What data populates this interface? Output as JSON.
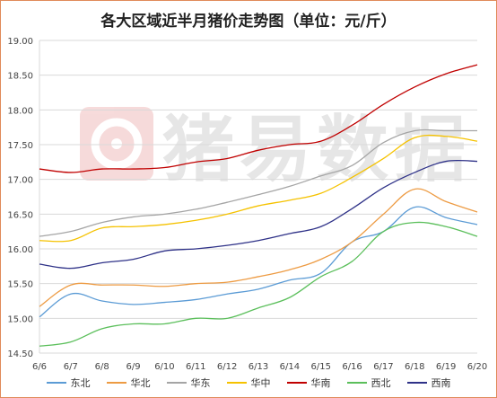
{
  "chart_data": {
    "type": "line",
    "title": "各大区域近半月猪价走势图（单位：元/斤）",
    "categories": [
      "6/6",
      "6/7",
      "6/8",
      "6/9",
      "6/10",
      "6/11",
      "6/12",
      "6/13",
      "6/14",
      "6/15",
      "6/16",
      "6/17",
      "6/18",
      "6/19",
      "6/20"
    ],
    "ylim": [
      14.5,
      19.0
    ],
    "yticks": [
      "19.00",
      "18.50",
      "18.00",
      "17.50",
      "17.00",
      "16.50",
      "16.00",
      "15.50",
      "15.00",
      "14.50"
    ],
    "grid": true,
    "legend_position": "bottom",
    "watermark": "猪易数据",
    "series": [
      {
        "name": "东北",
        "color": "#5b9bd5",
        "values": [
          15.02,
          15.35,
          15.25,
          15.2,
          15.23,
          15.27,
          15.35,
          15.42,
          15.55,
          15.65,
          16.1,
          16.25,
          16.6,
          16.45,
          16.35
        ]
      },
      {
        "name": "华北",
        "color": "#ed9b43",
        "values": [
          15.17,
          15.48,
          15.48,
          15.48,
          15.46,
          15.5,
          15.52,
          15.6,
          15.7,
          15.85,
          16.1,
          16.5,
          16.86,
          16.68,
          16.53
        ]
      },
      {
        "name": "华东",
        "color": "#a5a5a5",
        "values": [
          16.18,
          16.25,
          16.38,
          16.46,
          16.5,
          16.57,
          16.67,
          16.78,
          16.9,
          17.05,
          17.2,
          17.53,
          17.7,
          17.7,
          17.7
        ]
      },
      {
        "name": "华中",
        "color": "#f5c200",
        "values": [
          16.12,
          16.12,
          16.3,
          16.32,
          16.35,
          16.41,
          16.5,
          16.62,
          16.7,
          16.8,
          17.03,
          17.3,
          17.6,
          17.62,
          17.55
        ]
      },
      {
        "name": "华南",
        "color": "#c00000",
        "values": [
          17.15,
          17.1,
          17.15,
          17.15,
          17.17,
          17.25,
          17.3,
          17.42,
          17.5,
          17.55,
          17.78,
          18.08,
          18.33,
          18.52,
          18.65
        ]
      },
      {
        "name": "西北",
        "color": "#5bbf5b",
        "values": [
          14.6,
          14.66,
          14.85,
          14.92,
          14.92,
          15.0,
          15.0,
          15.15,
          15.3,
          15.6,
          15.82,
          16.25,
          16.38,
          16.32,
          16.18
        ]
      },
      {
        "name": "西南",
        "color": "#2f3288",
        "values": [
          15.78,
          15.72,
          15.8,
          15.85,
          15.97,
          16.0,
          16.05,
          16.12,
          16.22,
          16.32,
          16.58,
          16.88,
          17.1,
          17.26,
          17.26
        ]
      }
    ]
  }
}
